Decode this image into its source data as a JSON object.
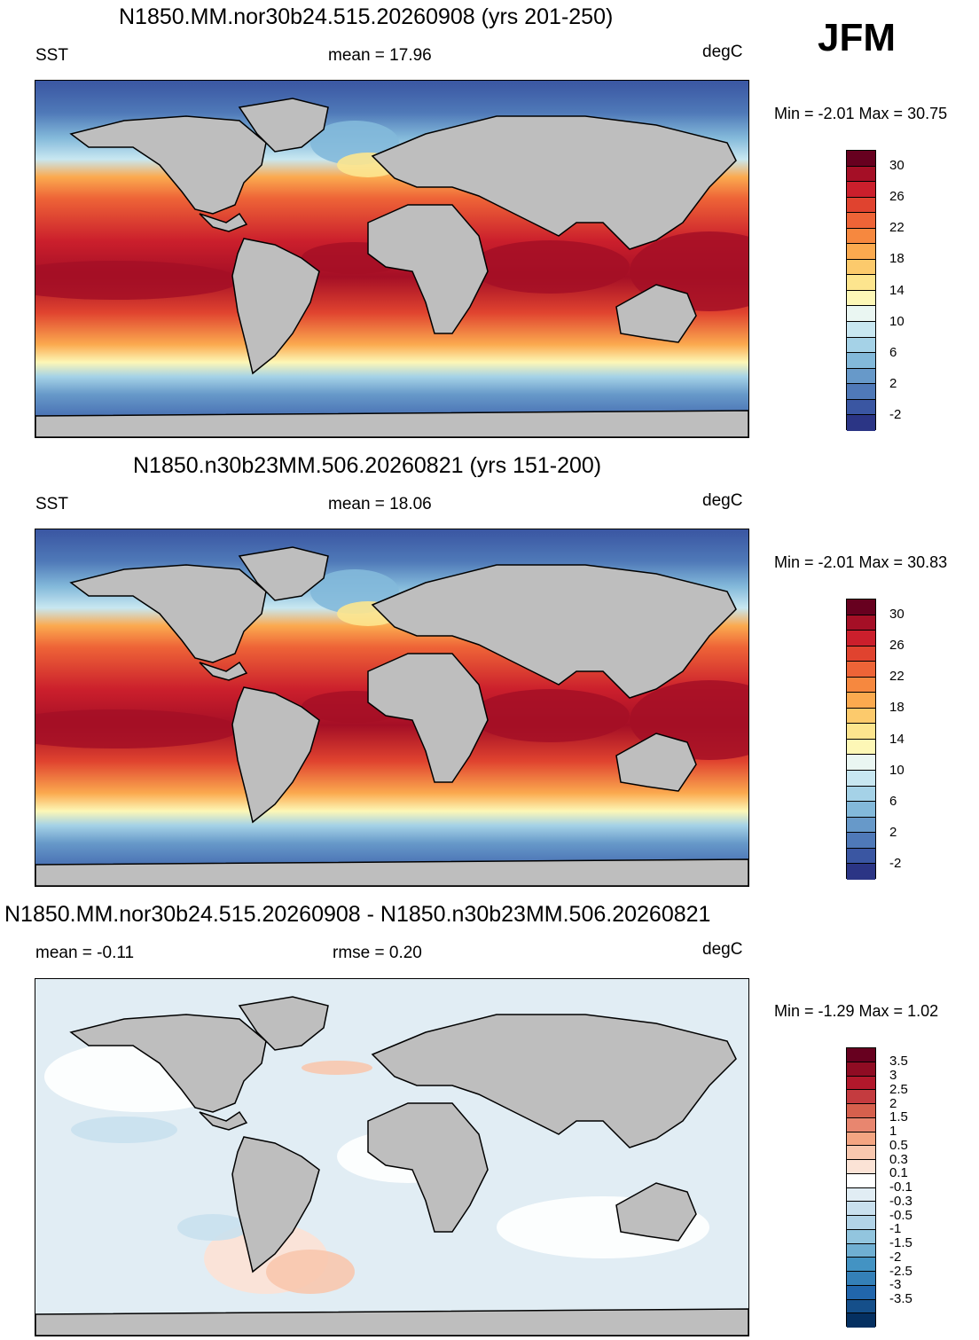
{
  "season": "JFM",
  "panels": [
    {
      "title": "N1850.MM.nor30b24.515.20260908 (yrs 201-250)",
      "left_label": "SST",
      "center_label": "mean =  17.96",
      "units": "degC",
      "minmax": "Min =  -2.01 Max =  30.75"
    },
    {
      "title": "N1850.n30b23MM.506.20260821 (yrs 151-200)",
      "left_label": "SST",
      "center_label": "mean =  18.06",
      "units": "degC",
      "minmax": "Min =  -2.01 Max =  30.83"
    },
    {
      "title": "N1850.MM.nor30b24.515.20260908 - N1850.n30b23MM.506.20260821",
      "left_label": "mean =  -0.11",
      "center_label": "rmse =   0.20",
      "units": "degC",
      "minmax": "Min =  -1.29 Max =   1.02"
    }
  ],
  "colorbar_sst": {
    "colors": [
      "#67001f",
      "#a50f26",
      "#cb1f2c",
      "#e0432f",
      "#ee6437",
      "#f6883f",
      "#fbaa4f",
      "#fcca6c",
      "#fde58e",
      "#fdf7b6",
      "#eaf6f2",
      "#c8e7f1",
      "#a5d2e7",
      "#83b9da",
      "#6799c9",
      "#4f79b8",
      "#3a56a2",
      "#2b3585"
    ],
    "ticks": [
      "30",
      "26",
      "22",
      "18",
      "14",
      "10",
      "6",
      "2",
      "-2"
    ]
  },
  "colorbar_diff": {
    "colors": [
      "#67001f",
      "#8f0c23",
      "#b2182b",
      "#c43b3f",
      "#d6604d",
      "#e8866f",
      "#f4a582",
      "#f8c7ae",
      "#fbe3d6",
      "#ffffff",
      "#e1edf4",
      "#c9e0ee",
      "#b1d3e7",
      "#92c5de",
      "#6fafd2",
      "#4393c3",
      "#3480b8",
      "#2166ac",
      "#154f8a",
      "#053061"
    ],
    "ticks": [
      "3.5",
      "3",
      "2.5",
      "2",
      "1.5",
      "1",
      "0.5",
      "0.3",
      "0.1",
      "-0.1",
      "-0.3",
      "-0.5",
      "-1",
      "-1.5",
      "-2",
      "-2.5",
      "-3",
      "-3.5"
    ]
  }
}
